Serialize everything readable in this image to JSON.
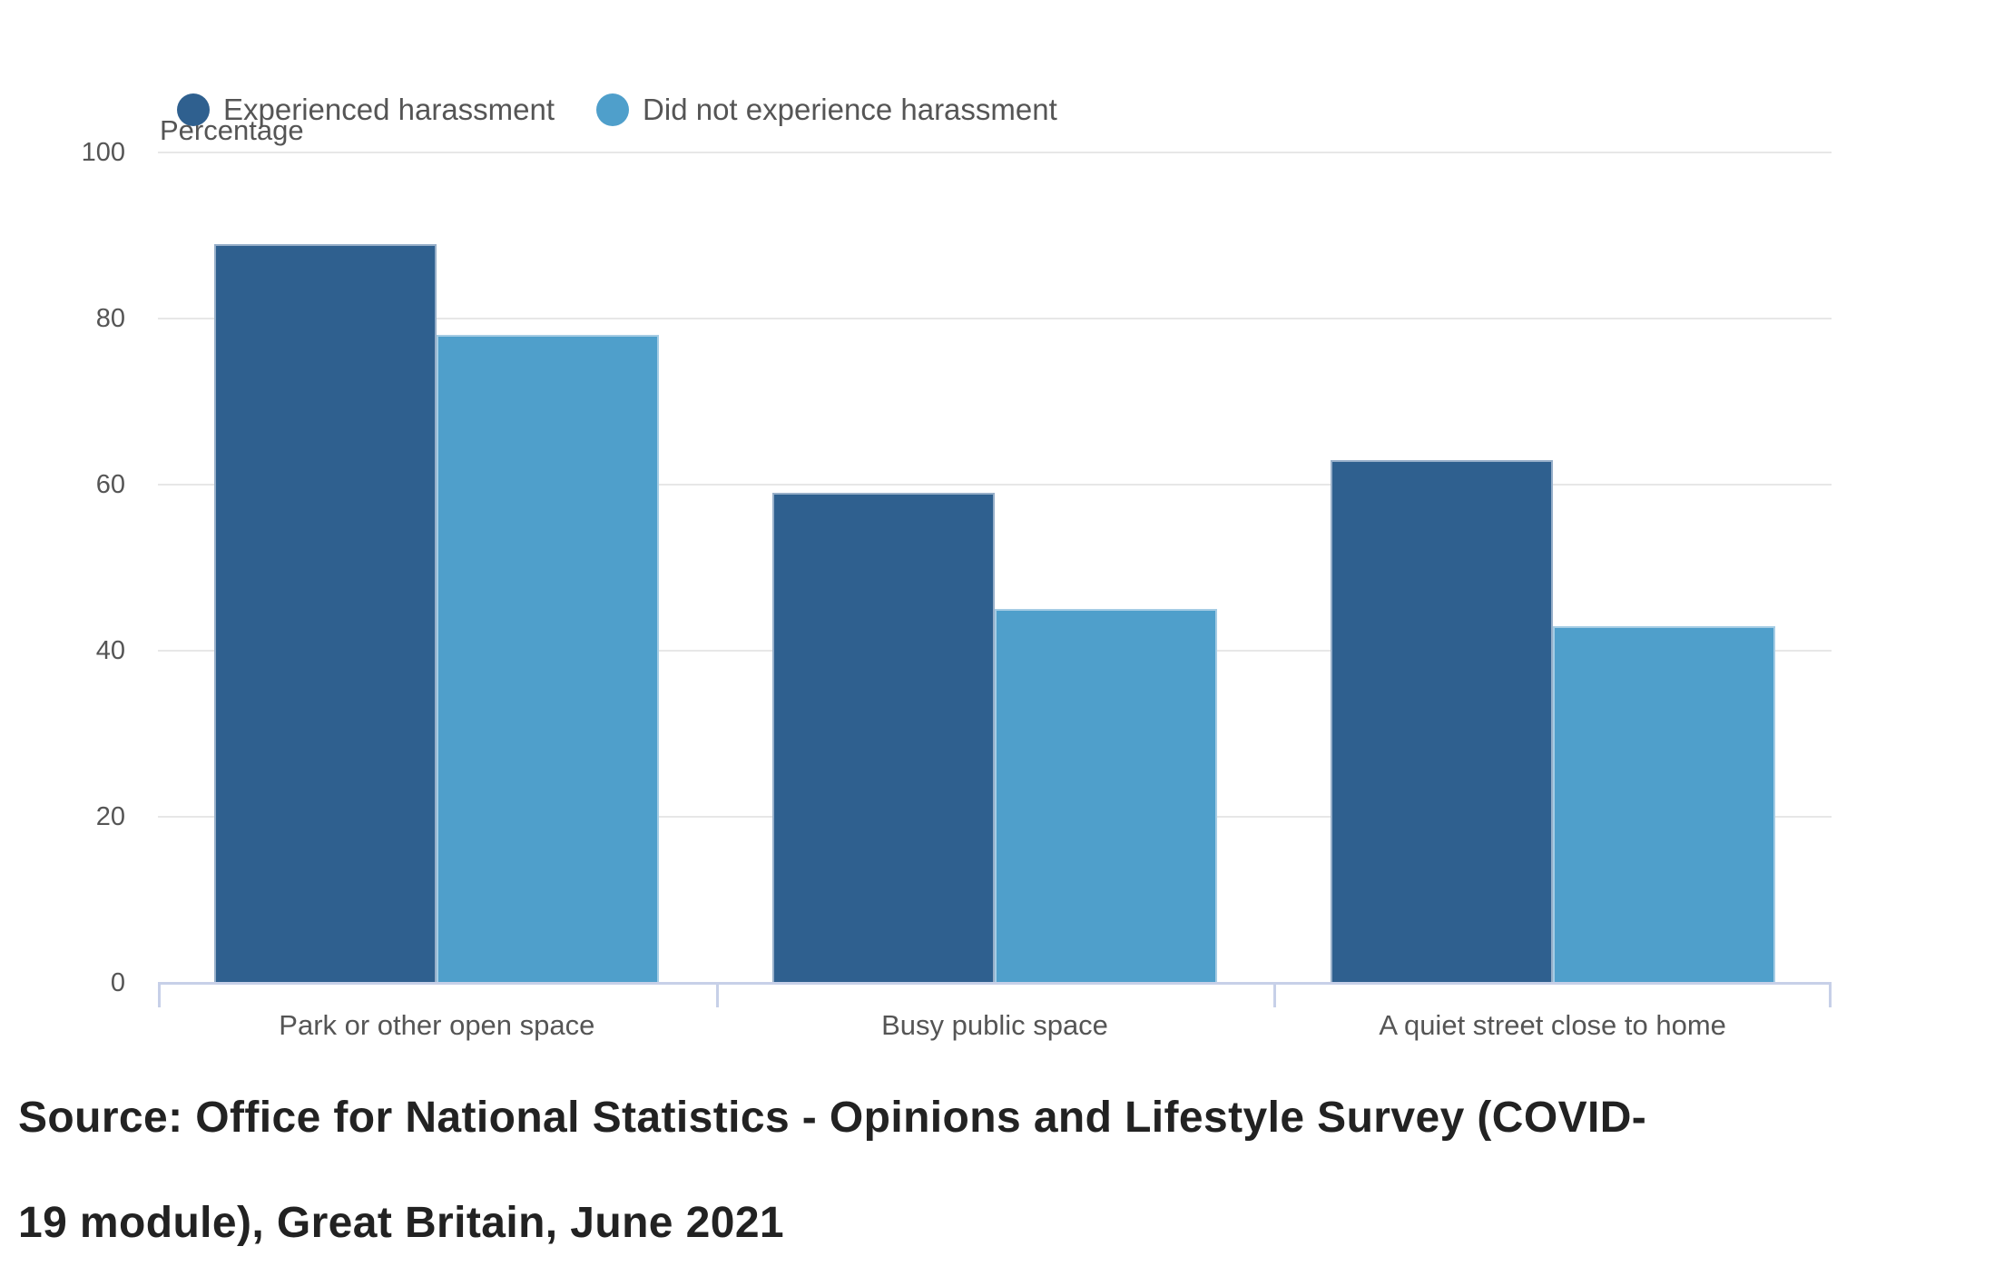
{
  "chart_data": {
    "type": "bar",
    "categories": [
      "Park or other open space",
      "Busy public space",
      "A quiet street close to home"
    ],
    "series": [
      {
        "name": "Experienced harassment",
        "color": "#2F608F",
        "values": [
          89,
          59,
          63
        ]
      },
      {
        "name": "Did not experience harassment",
        "color": "#4F9FCB",
        "values": [
          78,
          45,
          43
        ]
      }
    ],
    "ylabel": "Percentage",
    "xlabel": "",
    "ylim": [
      0,
      100
    ],
    "yticks": [
      0,
      20,
      40,
      60,
      80,
      100
    ],
    "grid": true,
    "legend_position": "top-left"
  },
  "legend": {
    "items": [
      {
        "label": "Experienced harassment",
        "color": "#2F608F"
      },
      {
        "label": "Did not experience harassment",
        "color": "#4F9FCB"
      }
    ]
  },
  "source": {
    "line1": "Source: Office for National Statistics - Opinions and Lifestyle Survey (COVID-",
    "line2": "19 module), Great Britain, June 2021"
  },
  "colors": {
    "grid": "#e7e7e7",
    "axis": "#c7d0e8",
    "label_text": "#555555",
    "source_text": "#222222",
    "background": "#ffffff"
  }
}
